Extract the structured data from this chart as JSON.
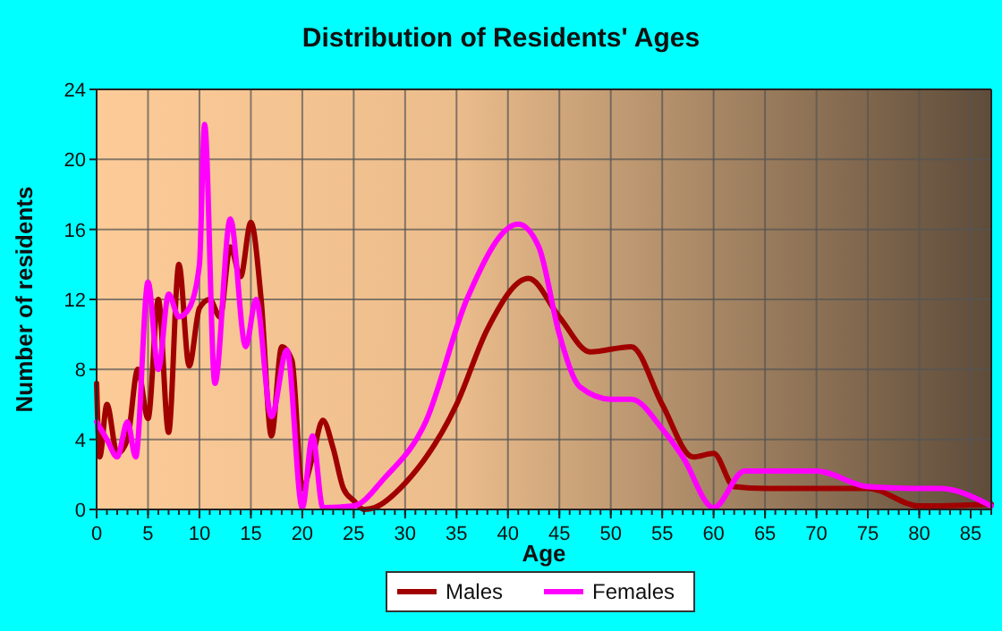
{
  "chart_data": {
    "type": "line",
    "title": "Distribution of Residents' Ages",
    "xlabel": "Age",
    "ylabel": "Number of residents",
    "xlim": [
      0,
      87
    ],
    "xticks": [
      0,
      5,
      10,
      15,
      20,
      25,
      30,
      35,
      40,
      45,
      50,
      55,
      60,
      65,
      70,
      75,
      80,
      85
    ],
    "ylim": [
      0,
      24
    ],
    "yticks": [
      0,
      4,
      8,
      12,
      16,
      20,
      24
    ],
    "grid": true,
    "legend": "bottom",
    "series": [
      {
        "name": "Males",
        "color": "#a00000",
        "x": [
          0,
          0.3,
          1,
          2,
          3,
          4,
          5,
          6,
          7,
          8,
          9,
          10,
          11,
          12,
          13,
          14,
          15,
          16,
          17,
          18,
          19,
          20,
          21,
          22,
          23,
          24,
          25,
          26,
          27,
          30,
          35,
          38,
          42,
          45,
          48,
          52,
          55,
          58,
          60,
          62,
          65,
          70,
          75,
          80,
          87
        ],
        "values": [
          7.2,
          3,
          6,
          3.2,
          4,
          8,
          5.2,
          12,
          4.4,
          14,
          8.2,
          11.5,
          12,
          11,
          15,
          13.3,
          16.4,
          12,
          4.2,
          9.3,
          8.5,
          1.2,
          3,
          5.1,
          3.5,
          1.2,
          0.5,
          0,
          0.1,
          1.5,
          6,
          10.3,
          13.2,
          11,
          9,
          9.3,
          6,
          3,
          3.2,
          1.3,
          1.2,
          1.2,
          1.2,
          0.2,
          0.3
        ]
      },
      {
        "name": "Females",
        "color": "#ff00ff",
        "x": [
          0,
          1,
          2,
          3,
          3.8,
          5,
          6,
          7,
          8,
          9,
          10,
          10.5,
          11.5,
          13,
          14.5,
          15.5,
          17,
          18.5,
          20,
          21,
          22,
          25,
          28,
          32,
          36,
          41,
          43,
          45,
          47,
          50,
          52,
          55,
          57,
          60,
          63,
          70,
          75,
          80,
          82,
          87
        ],
        "values": [
          5,
          4,
          3,
          5,
          3,
          13,
          8,
          12.3,
          11,
          11.5,
          14,
          22,
          7.2,
          16.6,
          9.3,
          12,
          5.3,
          9.1,
          0.1,
          4.2,
          0.1,
          0.2,
          1.8,
          5,
          12,
          16.3,
          15,
          10,
          7,
          6.3,
          6.3,
          4.6,
          3,
          0.1,
          2.2,
          2.2,
          1.3,
          1.2,
          1.2,
          0.2
        ]
      }
    ]
  }
}
